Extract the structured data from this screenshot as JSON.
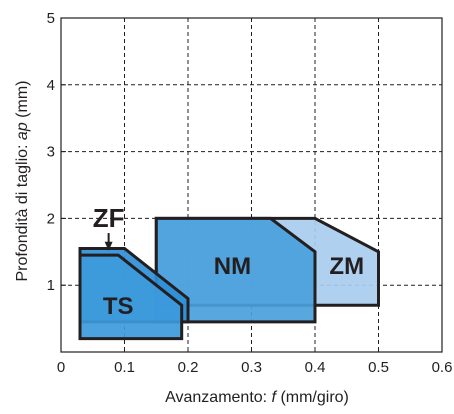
{
  "chart_data": {
    "type": "area",
    "xlabel_prefix": "Avanzamento: ",
    "xlabel_var": "f",
    "xlabel_suffix": " (mm/giro)",
    "ylabel_prefix": "Profondità di taglio: ",
    "ylabel_var": "ap",
    "ylabel_suffix": " (mm)",
    "xlim": [
      0,
      0.6
    ],
    "ylim": [
      0,
      5
    ],
    "x_ticks": [
      "0",
      "0.1",
      "0.2",
      "0.3",
      "0.4",
      "0.5",
      "0.6"
    ],
    "y_ticks": [
      "1",
      "2",
      "3",
      "4",
      "5"
    ],
    "grid": true,
    "regions": [
      {
        "name": "ZM",
        "color": "#a8cdee",
        "polygon": [
          [
            0.15,
            2.0
          ],
          [
            0.4,
            2.0
          ],
          [
            0.5,
            1.5
          ],
          [
            0.5,
            0.7
          ],
          [
            0.15,
            0.7
          ]
        ]
      },
      {
        "name": "NM",
        "color": "#4aa0dc",
        "polygon": [
          [
            0.15,
            2.0
          ],
          [
            0.33,
            2.0
          ],
          [
            0.4,
            1.5
          ],
          [
            0.4,
            0.45
          ],
          [
            0.15,
            0.45
          ]
        ]
      },
      {
        "name": "ZF",
        "color": "#2f8fd6",
        "polygon": [
          [
            0.03,
            1.55
          ],
          [
            0.1,
            1.55
          ],
          [
            0.2,
            0.8
          ],
          [
            0.2,
            0.45
          ],
          [
            0.03,
            0.45
          ]
        ]
      },
      {
        "name": "TS",
        "color": "#3d9adb",
        "polygon": [
          [
            0.03,
            1.45
          ],
          [
            0.09,
            1.45
          ],
          [
            0.19,
            0.7
          ],
          [
            0.19,
            0.2
          ],
          [
            0.03,
            0.2
          ]
        ]
      }
    ],
    "labels": [
      {
        "text": "NM",
        "x": 0.27,
        "y": 1.3,
        "role": "region"
      },
      {
        "text": "ZM",
        "x": 0.45,
        "y": 1.3,
        "role": "region"
      },
      {
        "text": "TS",
        "x": 0.09,
        "y": 0.7,
        "role": "region"
      },
      {
        "text": "ZF",
        "x": 0.075,
        "y": 2.05,
        "role": "callout",
        "target": [
          0.075,
          1.53
        ]
      }
    ]
  }
}
